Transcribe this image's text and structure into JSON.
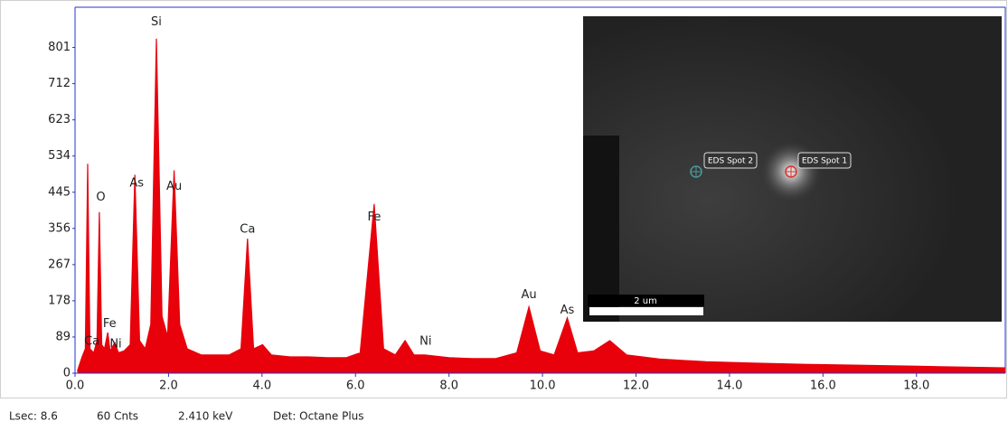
{
  "chart_data": {
    "type": "area",
    "color": "#e8000b",
    "x": [
      0.05,
      0.15,
      0.22,
      0.27,
      0.32,
      0.4,
      0.47,
      0.52,
      0.57,
      0.63,
      0.7,
      0.75,
      0.85,
      0.93,
      1.05,
      1.18,
      1.28,
      1.38,
      1.5,
      1.62,
      1.74,
      1.86,
      1.98,
      2.12,
      2.24,
      2.4,
      2.7,
      3.0,
      3.3,
      3.55,
      3.69,
      3.82,
      4.01,
      4.2,
      4.6,
      5.0,
      5.4,
      5.8,
      6.1,
      6.4,
      6.6,
      6.85,
      7.06,
      7.25,
      7.48,
      8.0,
      8.5,
      9.0,
      9.45,
      9.71,
      9.95,
      10.25,
      10.53,
      10.75,
      11.1,
      11.44,
      11.8,
      12.5,
      13.5,
      14.5,
      15.5,
      16.5,
      17.5,
      18.5,
      19.5,
      19.9
    ],
    "values": [
      5,
      40,
      60,
      515,
      60,
      50,
      80,
      396,
      70,
      60,
      100,
      55,
      75,
      50,
      55,
      70,
      488,
      80,
      60,
      120,
      823,
      140,
      90,
      499,
      120,
      60,
      45,
      45,
      45,
      60,
      331,
      60,
      70,
      45,
      40,
      40,
      38,
      38,
      50,
      416,
      60,
      45,
      80,
      45,
      45,
      38,
      36,
      36,
      50,
      163,
      55,
      45,
      136,
      50,
      55,
      80,
      45,
      35,
      28,
      25,
      22,
      20,
      18,
      16,
      14,
      13
    ],
    "xlim": [
      0,
      19.9
    ],
    "ylim": [
      0,
      900
    ],
    "xticks": [
      {
        "value": 0,
        "label": "0.0"
      },
      {
        "value": 2,
        "label": "2.0"
      },
      {
        "value": 4,
        "label": "4.0"
      },
      {
        "value": 6,
        "label": "6.0"
      },
      {
        "value": 8,
        "label": "8.0"
      },
      {
        "value": 10,
        "label": "10.0"
      },
      {
        "value": 12,
        "label": "12.0"
      },
      {
        "value": 14,
        "label": "14.0"
      },
      {
        "value": 16,
        "label": "16.0"
      },
      {
        "value": 18,
        "label": "18.0"
      }
    ],
    "yticks": [
      0,
      89,
      178,
      267,
      356,
      445,
      534,
      623,
      712,
      801
    ],
    "peak_labels": [
      {
        "label": "Si",
        "x": 1.74,
        "y": 863
      },
      {
        "label": "O",
        "x": 0.55,
        "y": 432
      },
      {
        "label": "As",
        "x": 1.32,
        "y": 467
      },
      {
        "label": "Au",
        "x": 2.12,
        "y": 459
      },
      {
        "label": "Ca",
        "x": 3.69,
        "y": 353
      },
      {
        "label": "Fe",
        "x": 6.4,
        "y": 383
      },
      {
        "label": "Ni",
        "x": 7.5,
        "y": 78
      },
      {
        "label": "Au",
        "x": 9.71,
        "y": 192
      },
      {
        "label": "As",
        "x": 10.53,
        "y": 154
      },
      {
        "label": "Fe",
        "x": 0.74,
        "y": 121
      },
      {
        "label": "Ca",
        "x": 0.36,
        "y": 78
      },
      {
        "label": "Ni",
        "x": 0.87,
        "y": 71
      }
    ]
  },
  "inset": {
    "spot_2": "EDS Spot 2",
    "spot_1": "EDS Spot 1",
    "scale_bar": "2 um"
  },
  "status_bar": [
    "Lsec: 8.6",
    "60 Cnts",
    "2.410 keV",
    "Det: Octane Plus"
  ]
}
